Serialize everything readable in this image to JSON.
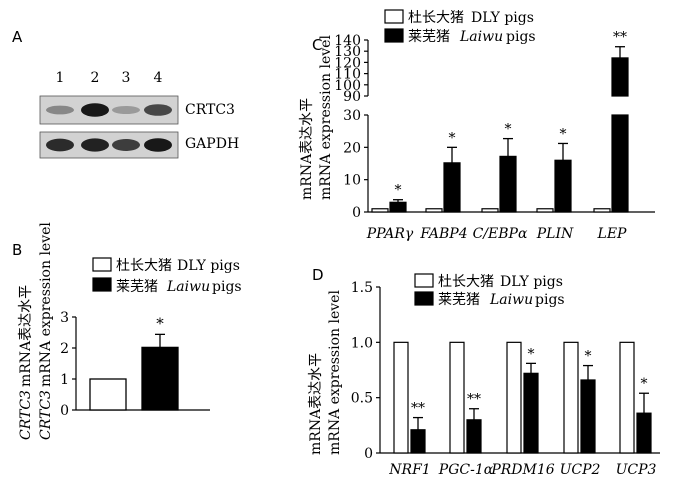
{
  "panels": {
    "A": {
      "letter": "A",
      "lanes": [
        "1",
        "2",
        "3",
        "4"
      ],
      "blots": [
        {
          "label": "CRTC3",
          "intensities": [
            0.35,
            0.95,
            0.25,
            0.7
          ]
        },
        {
          "label": "GAPDH",
          "intensities": [
            0.85,
            0.9,
            0.75,
            0.95
          ]
        }
      ]
    },
    "B": {
      "letter": "B"
    },
    "C": {
      "letter": "C"
    },
    "D": {
      "letter": "D"
    }
  },
  "chart_data": [
    {
      "panel": "B",
      "type": "bar",
      "categories": [
        ""
      ],
      "series": [
        {
          "name": "杜长大猪 DLY pigs",
          "fill": "#ffffff",
          "values": [
            1.0
          ],
          "errors": [
            0
          ]
        },
        {
          "name": "莱芜猪 Laiwu pigs",
          "fill": "#000000",
          "values": [
            2.02
          ],
          "errors": [
            0.42
          ]
        }
      ],
      "significance": [
        [
          "",
          "*"
        ]
      ],
      "ylabel_cn": "",
      "ylabel_gene": "CRTC3",
      "ylabel_rest": "mRNA表达水平",
      "ylabel2_gene": "CRTC3",
      "ylabel2_rest": "mRNA expression level",
      "yticks": [
        0,
        1,
        2,
        3
      ],
      "ylim": [
        0,
        3
      ]
    },
    {
      "panel": "C",
      "type": "bar",
      "broken_axis": true,
      "categories": [
        "PPARγ",
        "FABP4",
        "C/EBPα",
        "PLIN",
        "LEP"
      ],
      "series": [
        {
          "name": "杜长大猪 DLY pigs",
          "fill": "#ffffff",
          "values": [
            1,
            1,
            1,
            1,
            1
          ],
          "errors": [
            0,
            0,
            0,
            0,
            0
          ]
        },
        {
          "name": "莱芜猪 Laiwu pigs",
          "fill": "#000000",
          "values": [
            3.0,
            15.2,
            17.2,
            16.0,
            124
          ],
          "errors": [
            0.8,
            4.8,
            5.5,
            5.2,
            10
          ]
        }
      ],
      "significance": [
        [
          "",
          "*"
        ],
        [
          "",
          "*"
        ],
        [
          "",
          "*"
        ],
        [
          "",
          "*"
        ],
        [
          "",
          "**"
        ]
      ],
      "ylabel_cn": "mRNA表达水平",
      "ylabel_en": "mRNA expression level",
      "yticks_lower": [
        0,
        10,
        20,
        30
      ],
      "yticks_upper": [
        90,
        100,
        110,
        120,
        130,
        140
      ],
      "ylim_lower": [
        0,
        30
      ],
      "ylim_upper": [
        90,
        140
      ]
    },
    {
      "panel": "D",
      "type": "bar",
      "categories": [
        "NRF1",
        "PGC-1α",
        "PRDM16",
        "UCP2",
        "UCP3"
      ],
      "series": [
        {
          "name": "杜长大猪 DLY pigs",
          "fill": "#ffffff",
          "values": [
            1,
            1,
            1,
            1,
            1
          ],
          "errors": [
            0,
            0,
            0,
            0,
            0
          ]
        },
        {
          "name": "莱芜猪 Laiwu pigs",
          "fill": "#000000",
          "values": [
            0.21,
            0.3,
            0.72,
            0.66,
            0.36
          ],
          "errors": [
            0.11,
            0.1,
            0.09,
            0.13,
            0.18
          ]
        }
      ],
      "significance": [
        [
          "",
          "**"
        ],
        [
          "",
          "**"
        ],
        [
          "",
          "*"
        ],
        [
          "",
          "*"
        ],
        [
          "",
          "*"
        ]
      ],
      "ylabel_cn": "mRNA表达水平",
      "ylabel_en": "mRNA expression level",
      "yticks": [
        "0",
        "0.5",
        "1.0",
        "1.5"
      ],
      "ylim": [
        0,
        1.5
      ]
    }
  ],
  "legend": {
    "dly_cn": "杜长大猪",
    "dly_en": "DLY pigs",
    "laiwu_cn": "莱芜猪",
    "laiwu_en": "Laiwu",
    "laiwu_tail": "pigs"
  }
}
